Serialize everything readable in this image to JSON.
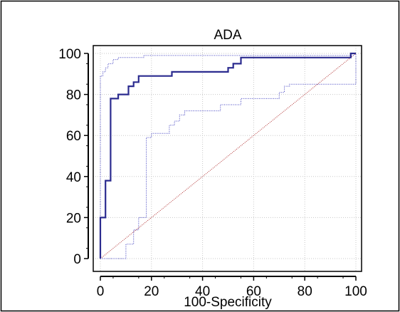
{
  "chart_data": {
    "type": "line",
    "title": "ADA",
    "xlabel": "100-Specificity",
    "ylabel": "",
    "xlim": [
      0,
      100
    ],
    "ylim": [
      0,
      100
    ],
    "xticks": [
      0,
      20,
      40,
      60,
      80,
      100
    ],
    "yticks": [
      0,
      20,
      40,
      60,
      80,
      100
    ],
    "grid": true,
    "series": [
      {
        "role": "roc",
        "color": "#2b2b8f",
        "style": "solid",
        "points": [
          [
            0,
            0
          ],
          [
            0,
            20
          ],
          [
            2,
            20
          ],
          [
            2,
            38
          ],
          [
            4,
            38
          ],
          [
            4,
            78
          ],
          [
            7,
            78
          ],
          [
            7,
            80
          ],
          [
            11,
            80
          ],
          [
            11,
            84
          ],
          [
            13,
            84
          ],
          [
            13,
            86
          ],
          [
            15,
            86
          ],
          [
            15,
            89
          ],
          [
            28,
            89
          ],
          [
            28,
            91
          ],
          [
            50,
            91
          ],
          [
            50,
            93
          ],
          [
            52,
            93
          ],
          [
            52,
            95
          ],
          [
            55,
            95
          ],
          [
            55,
            98
          ],
          [
            98,
            98
          ],
          [
            98,
            100
          ],
          [
            100,
            100
          ]
        ]
      },
      {
        "role": "upper-confidence-bound",
        "color": "#4040c0",
        "style": "dotted",
        "points": [
          [
            0,
            0
          ],
          [
            0,
            89
          ],
          [
            1,
            89
          ],
          [
            1,
            91
          ],
          [
            2,
            91
          ],
          [
            2,
            93
          ],
          [
            3,
            93
          ],
          [
            3,
            95
          ],
          [
            5,
            95
          ],
          [
            5,
            97
          ],
          [
            7,
            97
          ],
          [
            7,
            98
          ],
          [
            17,
            98
          ],
          [
            17,
            99
          ],
          [
            99,
            99
          ],
          [
            99,
            100
          ],
          [
            100,
            100
          ]
        ]
      },
      {
        "role": "lower-confidence-bound",
        "color": "#4040c0",
        "style": "dotted",
        "points": [
          [
            0,
            0
          ],
          [
            10,
            0
          ],
          [
            10,
            7
          ],
          [
            13,
            7
          ],
          [
            13,
            14
          ],
          [
            15,
            14
          ],
          [
            15,
            20
          ],
          [
            18,
            20
          ],
          [
            18,
            59
          ],
          [
            20,
            59
          ],
          [
            20,
            61
          ],
          [
            27,
            61
          ],
          [
            27,
            65
          ],
          [
            29,
            65
          ],
          [
            29,
            67
          ],
          [
            31,
            67
          ],
          [
            31,
            70
          ],
          [
            33,
            70
          ],
          [
            33,
            72
          ],
          [
            47,
            72
          ],
          [
            47,
            75
          ],
          [
            55,
            75
          ],
          [
            55,
            78
          ],
          [
            70,
            78
          ],
          [
            70,
            81
          ],
          [
            72,
            81
          ],
          [
            72,
            84
          ],
          [
            74,
            84
          ],
          [
            74,
            85
          ],
          [
            100,
            85
          ],
          [
            100,
            100
          ]
        ]
      },
      {
        "role": "reference-diagonal",
        "color": "#b03030",
        "style": "dotted",
        "points": [
          [
            0,
            0
          ],
          [
            100,
            100
          ]
        ]
      }
    ]
  }
}
